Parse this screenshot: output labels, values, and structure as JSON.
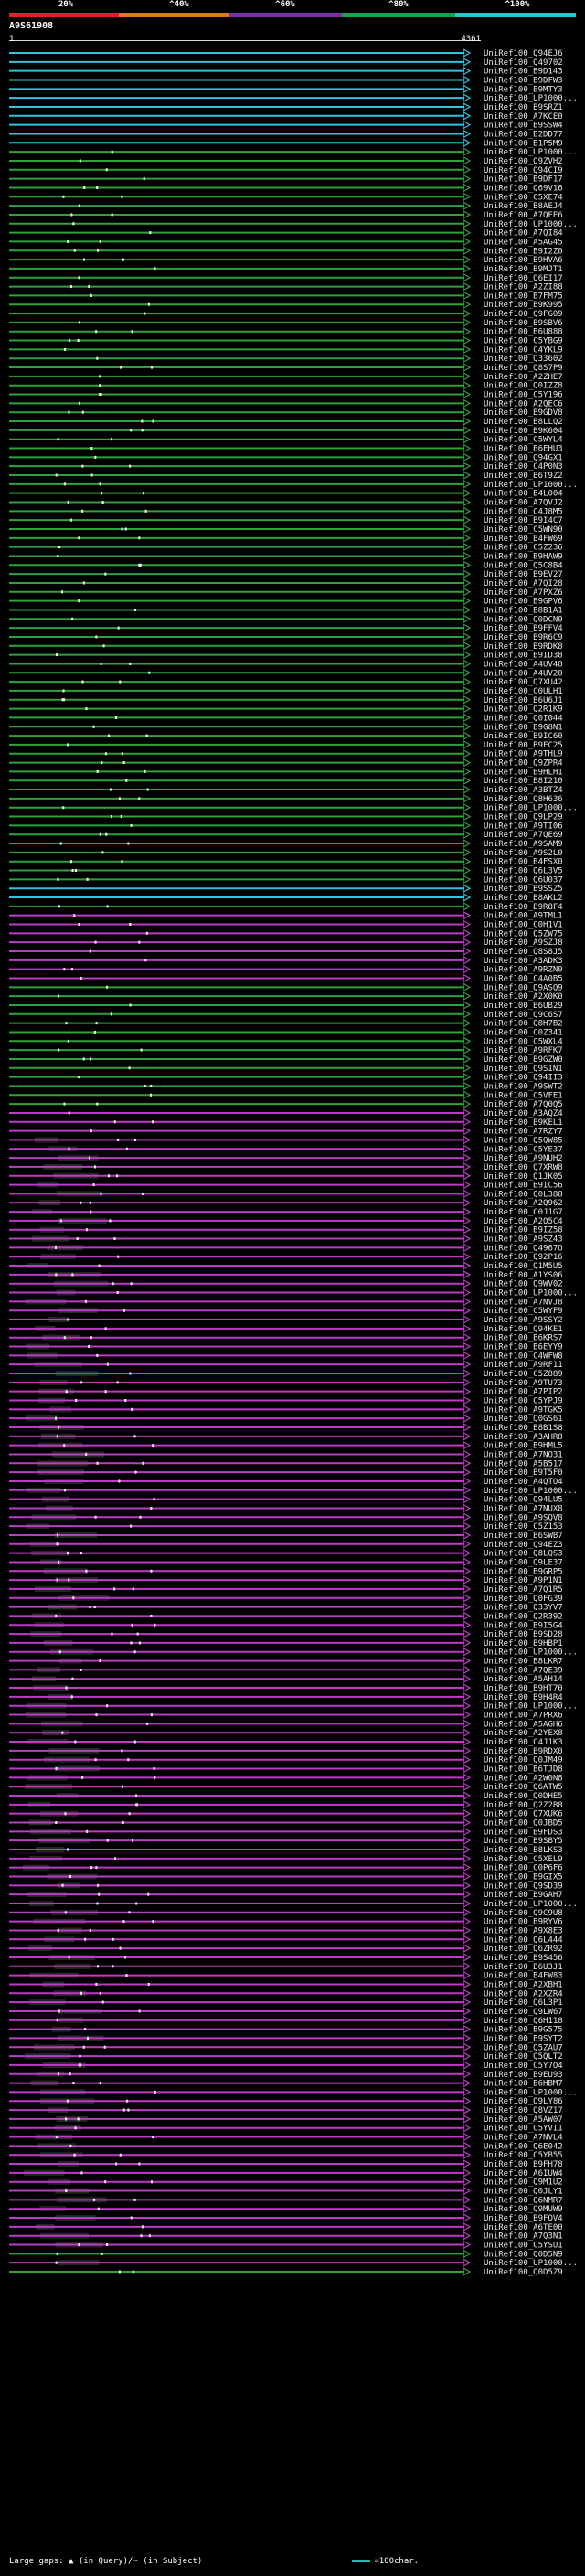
{
  "header": {
    "scale_labels": [
      "20%",
      "^40%",
      "^60%",
      "^80%",
      "^100%"
    ],
    "scale_colors": [
      "#e0202a",
      "#e07a20",
      "#7a2fb0",
      "#16a34a",
      "#2ec4d6"
    ]
  },
  "query": {
    "id": "A9S61908",
    "ruler_start": "1",
    "ruler_end": "4361"
  },
  "colors": {
    "cyan": "#30c6dd",
    "green": "#2fa23c",
    "magenta": "#c03ac8",
    "dot": "#ffffff",
    "gap": "#6a6a6a"
  },
  "hits": [
    {
      "id": "UniRef100_Q94EJ6",
      "group": "cyan"
    },
    {
      "id": "UniRef100_Q49702",
      "group": "cyan"
    },
    {
      "id": "UniRef100_B9D143",
      "group": "cyan"
    },
    {
      "id": "UniRef100_B9DFW3",
      "group": "cyan"
    },
    {
      "id": "UniRef100_B9MTY3",
      "group": "cyan"
    },
    {
      "id": "UniRef100_UP1000...",
      "group": "cyan"
    },
    {
      "id": "UniRef100_B9SRZ1",
      "group": "cyan"
    },
    {
      "id": "UniRef100_A7KCE0",
      "group": "cyan"
    },
    {
      "id": "UniRef100_B9SSW4",
      "group": "cyan"
    },
    {
      "id": "UniRef100_B2DD77",
      "group": "cyan"
    },
    {
      "id": "UniRef100_B1P5M9",
      "group": "cyan"
    },
    {
      "id": "UniRef100_UP1000...",
      "group": "green"
    },
    {
      "id": "UniRef100_Q9ZVH2",
      "group": "green"
    },
    {
      "id": "UniRef100_Q94CI9",
      "group": "green"
    },
    {
      "id": "UniRef100_B9DF17",
      "group": "green"
    },
    {
      "id": "UniRef100_Q69V16",
      "group": "green"
    },
    {
      "id": "UniRef100_C5XE74",
      "group": "green"
    },
    {
      "id": "UniRef100_B8AEJ4",
      "group": "green"
    },
    {
      "id": "UniRef100_A7QEE6",
      "group": "green"
    },
    {
      "id": "UniRef100_UP1000...",
      "group": "green"
    },
    {
      "id": "UniRef100_A7QI84",
      "group": "green"
    },
    {
      "id": "UniRef100_A5AG45",
      "group": "green"
    },
    {
      "id": "UniRef100_B9I2Z0",
      "group": "green"
    },
    {
      "id": "UniRef100_B9HVA6",
      "group": "green"
    },
    {
      "id": "UniRef100_B9MJT1",
      "group": "green"
    },
    {
      "id": "UniRef100_Q6EI17",
      "group": "green"
    },
    {
      "id": "UniRef100_A2ZI88",
      "group": "green"
    },
    {
      "id": "UniRef100_B7FM75",
      "group": "green"
    },
    {
      "id": "UniRef100_B9K995",
      "group": "green"
    },
    {
      "id": "UniRef100_Q9FG09",
      "group": "green"
    },
    {
      "id": "UniRef100_B9SBV6",
      "group": "green"
    },
    {
      "id": "UniRef100_B6U888",
      "group": "green"
    },
    {
      "id": "UniRef100_C5YBG9",
      "group": "green"
    },
    {
      "id": "UniRef100_C4YKL9",
      "group": "green"
    },
    {
      "id": "UniRef100_Q33602",
      "group": "green"
    },
    {
      "id": "UniRef100_Q8S7P9",
      "group": "green"
    },
    {
      "id": "UniRef100_A2ZHE7",
      "group": "green"
    },
    {
      "id": "UniRef100_Q0IZZ8",
      "group": "green"
    },
    {
      "id": "UniRef100_C5Y196",
      "group": "green"
    },
    {
      "id": "UniRef100_A2QEC6",
      "group": "green"
    },
    {
      "id": "UniRef100_B9GDV8",
      "group": "green"
    },
    {
      "id": "UniRef100_B8LLQ2",
      "group": "green"
    },
    {
      "id": "UniRef100_B9K604",
      "group": "green"
    },
    {
      "id": "UniRef100_C5WYL4",
      "group": "green"
    },
    {
      "id": "UniRef100_B6EHU3",
      "group": "green"
    },
    {
      "id": "UniRef100_Q94GX1",
      "group": "green"
    },
    {
      "id": "UniRef100_C4P0N3",
      "group": "green"
    },
    {
      "id": "UniRef100_B6T9Z2",
      "group": "green"
    },
    {
      "id": "UniRef100_UP1000...",
      "group": "green"
    },
    {
      "id": "UniRef100_B4L004",
      "group": "green"
    },
    {
      "id": "UniRef100_A7QVJ2",
      "group": "green"
    },
    {
      "id": "UniRef100_C4J8M5",
      "group": "green"
    },
    {
      "id": "UniRef100_B9I4C7",
      "group": "green"
    },
    {
      "id": "UniRef100_C5WN90",
      "group": "green"
    },
    {
      "id": "UniRef100_B4FW69",
      "group": "green"
    },
    {
      "id": "UniRef100_C5Z236",
      "group": "green"
    },
    {
      "id": "UniRef100_B9HAW9",
      "group": "green"
    },
    {
      "id": "UniRef100_Q5C8B4",
      "group": "green"
    },
    {
      "id": "UniRef100_B9EV27",
      "group": "green"
    },
    {
      "id": "UniRef100_A7QI28",
      "group": "green"
    },
    {
      "id": "UniRef100_A7PXZ6",
      "group": "green"
    },
    {
      "id": "UniRef100_B9GPV6",
      "group": "green"
    },
    {
      "id": "UniRef100_B8B1A1",
      "group": "green"
    },
    {
      "id": "UniRef100_Q0DCN0",
      "group": "green"
    },
    {
      "id": "UniRef100_B9FFV4",
      "group": "green"
    },
    {
      "id": "UniRef100_B9R6C9",
      "group": "green"
    },
    {
      "id": "UniRef100_B9RDK8",
      "group": "green"
    },
    {
      "id": "UniRef100_B9ID38",
      "group": "green"
    },
    {
      "id": "UniRef100_A4UV48",
      "group": "green"
    },
    {
      "id": "UniRef100_A4UV20",
      "group": "green"
    },
    {
      "id": "UniRef100_Q7XU42",
      "group": "green"
    },
    {
      "id": "UniRef100_C0ULH1",
      "group": "green"
    },
    {
      "id": "UniRef100_B6U6J1",
      "group": "green"
    },
    {
      "id": "UniRef100_Q2R1K9",
      "group": "green"
    },
    {
      "id": "UniRef100_Q0I044",
      "group": "green"
    },
    {
      "id": "UniRef100_B9G8N1",
      "group": "green"
    },
    {
      "id": "UniRef100_B9IC60",
      "group": "green"
    },
    {
      "id": "UniRef100_B9FC25",
      "group": "green"
    },
    {
      "id": "UniRef100_A9THL9",
      "group": "green"
    },
    {
      "id": "UniRef100_Q9ZPR4",
      "group": "green"
    },
    {
      "id": "UniRef100_B9HLH1",
      "group": "green"
    },
    {
      "id": "UniRef100_B8I210",
      "group": "green"
    },
    {
      "id": "UniRef100_A3BTZ4",
      "group": "green"
    },
    {
      "id": "UniRef100_Q8H636",
      "group": "green"
    },
    {
      "id": "UniRef100_UP1000...",
      "group": "green"
    },
    {
      "id": "UniRef100_Q9LP29",
      "group": "green"
    },
    {
      "id": "UniRef100_A9TI06",
      "group": "green"
    },
    {
      "id": "UniRef100_A7QE69",
      "group": "green"
    },
    {
      "id": "UniRef100_A9SAM9",
      "group": "green"
    },
    {
      "id": "UniRef100_A9S2L0",
      "group": "green"
    },
    {
      "id": "UniRef100_B4FSX0",
      "group": "green"
    },
    {
      "id": "UniRef100_Q6L3V5",
      "group": "green"
    },
    {
      "id": "UniRef100_Q6U037",
      "group": "green"
    },
    {
      "id": "UniRef100_B9SSZ5",
      "group": "cyan"
    },
    {
      "id": "UniRef100_B8AKL2",
      "group": "cyan"
    },
    {
      "id": "UniRef100_B9R8F4",
      "group": "green"
    },
    {
      "id": "UniRef100_A9TML1",
      "group": "magenta"
    },
    {
      "id": "UniRef100_C0H1V1",
      "group": "magenta"
    },
    {
      "id": "UniRef100_Q5ZW75",
      "group": "magenta"
    },
    {
      "id": "UniRef100_A9SZJ8",
      "group": "magenta"
    },
    {
      "id": "UniRef100_Q8S8J5",
      "group": "magenta"
    },
    {
      "id": "UniRef100_A3ADK3",
      "group": "magenta"
    },
    {
      "id": "UniRef100_A9RZN0",
      "group": "magenta"
    },
    {
      "id": "UniRef100_C4A0B5",
      "group": "magenta"
    },
    {
      "id": "UniRef100_Q9ASQ9",
      "group": "green"
    },
    {
      "id": "UniRef100_A2X0K0",
      "group": "green"
    },
    {
      "id": "UniRef100_B6UB29",
      "group": "green"
    },
    {
      "id": "UniRef100_Q9C6S7",
      "group": "green"
    },
    {
      "id": "UniRef100_Q8H7B2",
      "group": "green"
    },
    {
      "id": "UniRef100_C0Z341",
      "group": "green"
    },
    {
      "id": "UniRef100_C5WXL4",
      "group": "green"
    },
    {
      "id": "UniRef100_A9RFK7",
      "group": "green"
    },
    {
      "id": "UniRef100_B9GZW0",
      "group": "green"
    },
    {
      "id": "UniRef100_Q9SIN1",
      "group": "green"
    },
    {
      "id": "UniRef100_Q94II3",
      "group": "green"
    },
    {
      "id": "UniRef100_A9SWT2",
      "group": "green"
    },
    {
      "id": "UniRef100_C5VFE1",
      "group": "green"
    },
    {
      "id": "UniRef100_A7Q0Q5",
      "group": "green"
    },
    {
      "id": "UniRef100_A3AQZ4",
      "group": "magenta"
    },
    {
      "id": "UniRef100_B9KEL1",
      "group": "magenta"
    },
    {
      "id": "UniRef100_A7RZY7",
      "group": "magenta"
    },
    {
      "id": "UniRef100_Q5QW85",
      "group": "magenta"
    },
    {
      "id": "UniRef100_C5YE37",
      "group": "magenta"
    },
    {
      "id": "UniRef100_A9NUH2",
      "group": "magenta"
    },
    {
      "id": "UniRef100_Q7XRW8",
      "group": "magenta"
    },
    {
      "id": "UniRef100_Q1JK05",
      "group": "magenta"
    },
    {
      "id": "UniRef100_B9IC56",
      "group": "magenta"
    },
    {
      "id": "UniRef100_Q0L388",
      "group": "magenta"
    },
    {
      "id": "UniRef100_A2Q962",
      "group": "magenta"
    },
    {
      "id": "UniRef100_C0J1G7",
      "group": "magenta"
    },
    {
      "id": "UniRef100_A2Q5C4",
      "group": "magenta"
    },
    {
      "id": "UniRef100_B9IZ58",
      "group": "magenta"
    },
    {
      "id": "UniRef100_A9SZ43",
      "group": "magenta"
    },
    {
      "id": "UniRef100_Q4967O",
      "group": "magenta"
    },
    {
      "id": "UniRef100_Q92P16",
      "group": "magenta"
    },
    {
      "id": "UniRef100_Q1M5U5",
      "group": "magenta"
    },
    {
      "id": "UniRef100_A1YS06",
      "group": "magenta"
    },
    {
      "id": "UniRef100_Q9WV02",
      "group": "magenta"
    },
    {
      "id": "UniRef100_UP1000...",
      "group": "magenta"
    },
    {
      "id": "UniRef100_A7NVJ8",
      "group": "magenta"
    },
    {
      "id": "UniRef100_C5WYF9",
      "group": "magenta"
    },
    {
      "id": "UniRef100_A9SSY2",
      "group": "magenta"
    },
    {
      "id": "UniRef100_Q94KE1",
      "group": "magenta"
    },
    {
      "id": "UniRef100_B6KRS7",
      "group": "magenta"
    },
    {
      "id": "UniRef100_B6EYY9",
      "group": "magenta"
    },
    {
      "id": "UniRef100_C4WFW8",
      "group": "magenta"
    },
    {
      "id": "UniRef100_A9RF11",
      "group": "magenta"
    },
    {
      "id": "UniRef100_C5Z889",
      "group": "magenta"
    },
    {
      "id": "UniRef100_A9TU73",
      "group": "magenta"
    },
    {
      "id": "UniRef100_A7PIP2",
      "group": "magenta"
    },
    {
      "id": "UniRef100_C5YPJ9",
      "group": "magenta"
    },
    {
      "id": "UniRef100_A9TGK5",
      "group": "magenta"
    },
    {
      "id": "UniRef100_Q0GS61",
      "group": "magenta"
    },
    {
      "id": "UniRef100_B8B1S8",
      "group": "magenta"
    },
    {
      "id": "UniRef100_A3AHR8",
      "group": "magenta"
    },
    {
      "id": "UniRef100_B9HML5",
      "group": "magenta"
    },
    {
      "id": "UniRef100_A7NO31",
      "group": "magenta"
    },
    {
      "id": "UniRef100_A5B517",
      "group": "magenta"
    },
    {
      "id": "UniRef100_B9T5F0",
      "group": "magenta"
    },
    {
      "id": "UniRef100_A4QTO4",
      "group": "magenta"
    },
    {
      "id": "UniRef100_UP1000...",
      "group": "magenta"
    },
    {
      "id": "UniRef100_Q94LU5",
      "group": "magenta"
    },
    {
      "id": "UniRef100_A7NUX8",
      "group": "magenta"
    },
    {
      "id": "UniRef100_A9SQV8",
      "group": "magenta"
    },
    {
      "id": "UniRef100_C5Z153",
      "group": "magenta"
    },
    {
      "id": "UniRef100_B6SWB7",
      "group": "magenta"
    },
    {
      "id": "UniRef100_Q94EZ3",
      "group": "magenta"
    },
    {
      "id": "UniRef100_Q8LQS3",
      "group": "magenta"
    },
    {
      "id": "UniRef100_Q9LE37",
      "group": "magenta"
    },
    {
      "id": "UniRef100_B9GRP5",
      "group": "magenta"
    },
    {
      "id": "UniRef100_A9P1N1",
      "group": "magenta"
    },
    {
      "id": "UniRef100_A7Q1R5",
      "group": "magenta"
    },
    {
      "id": "UniRef100_Q0FG39",
      "group": "magenta"
    },
    {
      "id": "UniRef100_Q33YV7",
      "group": "magenta"
    },
    {
      "id": "UniRef100_Q2R392",
      "group": "magenta"
    },
    {
      "id": "UniRef100_B9I5G4",
      "group": "magenta"
    },
    {
      "id": "UniRef100_B9SD28",
      "group": "magenta"
    },
    {
      "id": "UniRef100_B9HBP1",
      "group": "magenta"
    },
    {
      "id": "UniRef100_UP1000...",
      "group": "magenta"
    },
    {
      "id": "UniRef100_B8LKR7",
      "group": "magenta"
    },
    {
      "id": "UniRef100_A7QE39",
      "group": "magenta"
    },
    {
      "id": "UniRef100_A5AH14",
      "group": "magenta"
    },
    {
      "id": "UniRef100_B9HT70",
      "group": "magenta"
    },
    {
      "id": "UniRef100_B9H4R4",
      "group": "magenta"
    },
    {
      "id": "UniRef100_UP1000...",
      "group": "magenta"
    },
    {
      "id": "UniRef100_A7PRX6",
      "group": "magenta"
    },
    {
      "id": "UniRef100_A5AGH6",
      "group": "magenta"
    },
    {
      "id": "UniRef100_A2YEX8",
      "group": "magenta"
    },
    {
      "id": "UniRef100_C4J1K3",
      "group": "magenta"
    },
    {
      "id": "UniRef100_B9RDX0",
      "group": "magenta"
    },
    {
      "id": "UniRef100_Q0JM49",
      "group": "magenta"
    },
    {
      "id": "UniRef100_B6TJD8",
      "group": "magenta"
    },
    {
      "id": "UniRef100_A2W0N8",
      "group": "magenta"
    },
    {
      "id": "UniRef100_Q6ATW5",
      "group": "magenta"
    },
    {
      "id": "UniRef100_Q0DHE5",
      "group": "magenta"
    },
    {
      "id": "UniRef100_Q2Z2B8",
      "group": "magenta"
    },
    {
      "id": "UniRef100_Q7XUK6",
      "group": "magenta"
    },
    {
      "id": "UniRef100_Q0JBD5",
      "group": "magenta"
    },
    {
      "id": "UniRef100_B9FDS3",
      "group": "magenta"
    },
    {
      "id": "UniRef100_B9SBY5",
      "group": "magenta"
    },
    {
      "id": "UniRef100_B8LKS3",
      "group": "magenta"
    },
    {
      "id": "UniRef100_C5XEL9",
      "group": "magenta"
    },
    {
      "id": "UniRef100_C0P6F6",
      "group": "magenta"
    },
    {
      "id": "UniRef100_B9GIX5",
      "group": "magenta"
    },
    {
      "id": "UniRef100_Q9SD39",
      "group": "magenta"
    },
    {
      "id": "UniRef100_B9GAH7",
      "group": "magenta"
    },
    {
      "id": "UniRef100_UP1000...",
      "group": "magenta"
    },
    {
      "id": "UniRef100_Q9C9U8",
      "group": "magenta"
    },
    {
      "id": "UniRef100_B9RYV6",
      "group": "magenta"
    },
    {
      "id": "UniRef100_A9X8E3",
      "group": "magenta"
    },
    {
      "id": "UniRef100_Q6L444",
      "group": "magenta"
    },
    {
      "id": "UniRef100_Q6ZR92",
      "group": "magenta"
    },
    {
      "id": "UniRef100_B9S456",
      "group": "magenta"
    },
    {
      "id": "UniRef100_B6U3J1",
      "group": "magenta"
    },
    {
      "id": "UniRef100_B4FW83",
      "group": "magenta"
    },
    {
      "id": "UniRef100_A2XBH1",
      "group": "magenta"
    },
    {
      "id": "UniRef100_A2XZR4",
      "group": "magenta"
    },
    {
      "id": "UniRef100_Q6L3P1",
      "group": "magenta"
    },
    {
      "id": "UniRef100_Q9LW67",
      "group": "magenta"
    },
    {
      "id": "UniRef100_Q6H118",
      "group": "magenta"
    },
    {
      "id": "UniRef100_B9G575",
      "group": "magenta"
    },
    {
      "id": "UniRef100_B9SYT2",
      "group": "magenta"
    },
    {
      "id": "UniRef100_Q5ZAU7",
      "group": "magenta"
    },
    {
      "id": "UniRef100_Q5QLT2",
      "group": "magenta"
    },
    {
      "id": "UniRef100_C5Y7O4",
      "group": "magenta"
    },
    {
      "id": "UniRef100_B9EU93",
      "group": "magenta"
    },
    {
      "id": "UniRef100_B6HBM7",
      "group": "magenta"
    },
    {
      "id": "UniRef100_UP1000...",
      "group": "magenta"
    },
    {
      "id": "UniRef100_Q9LY86",
      "group": "magenta"
    },
    {
      "id": "UniRef100_Q8VZ17",
      "group": "magenta"
    },
    {
      "id": "UniRef100_A5AW07",
      "group": "magenta"
    },
    {
      "id": "UniRef100_C5YVI1",
      "group": "magenta"
    },
    {
      "id": "UniRef100_A7NVL4",
      "group": "magenta"
    },
    {
      "id": "UniRef100_Q6E042",
      "group": "magenta"
    },
    {
      "id": "UniRef100_C5YB55",
      "group": "magenta"
    },
    {
      "id": "UniRef100_B9FH78",
      "group": "magenta"
    },
    {
      "id": "UniRef100_A6IUW4",
      "group": "magenta"
    },
    {
      "id": "UniRef100_Q9M1U2",
      "group": "magenta"
    },
    {
      "id": "UniRef100_Q0JLY1",
      "group": "magenta"
    },
    {
      "id": "UniRef100_Q6NMR7",
      "group": "magenta"
    },
    {
      "id": "UniRef100_Q9MUW9",
      "group": "magenta"
    },
    {
      "id": "UniRef100_B9FQV4",
      "group": "magenta"
    },
    {
      "id": "UniRef100_A6TE00",
      "group": "magenta"
    },
    {
      "id": "UniRef100_A7Q3N1",
      "group": "magenta"
    },
    {
      "id": "UniRef100_C5YSU1",
      "group": "magenta"
    },
    {
      "id": "UniRef100_Q0D5N9",
      "group": "green"
    },
    {
      "id": "UniRef100_UP1000...",
      "group": "magenta"
    },
    {
      "id": "UniRef100_Q0D5Z9",
      "group": "green"
    }
  ],
  "footer": {
    "legend_gaps": "Large gaps: ▲ (in Query)/~ (in Subject)",
    "legend_scale": "=100char."
  }
}
